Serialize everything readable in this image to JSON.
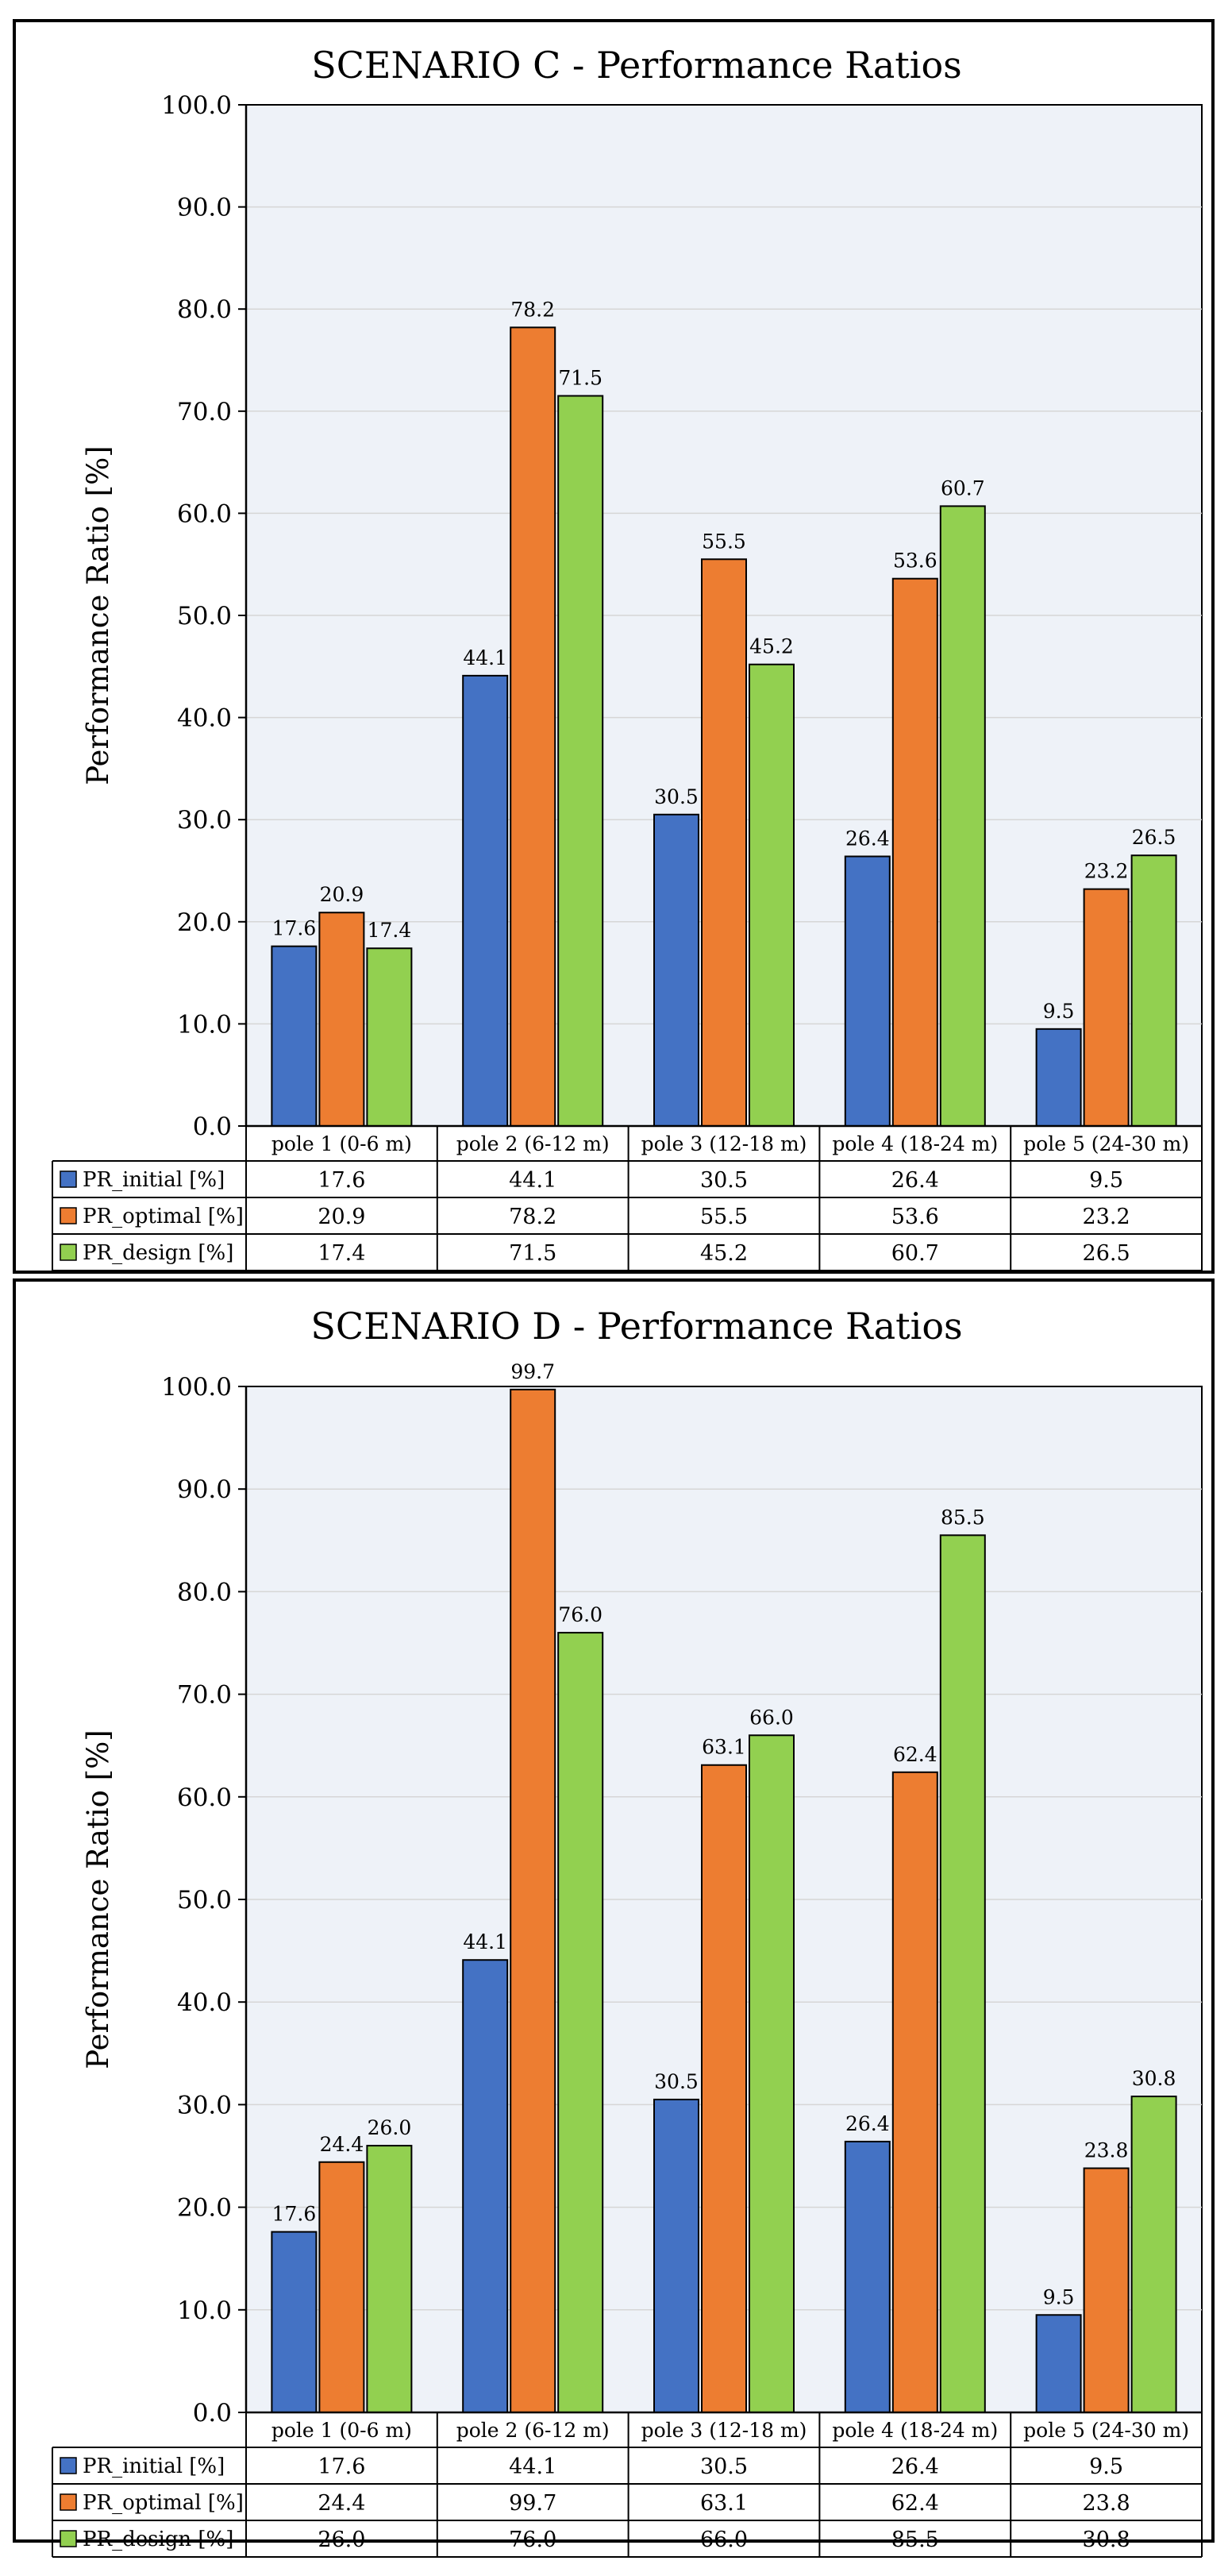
{
  "colors": {
    "PR_initial": "#4472C4",
    "PR_optimal": "#ED7D31",
    "PR_design": "#92D050",
    "plot_bg": "#EEF2F8",
    "gridline": "#D6D6D6"
  },
  "chart_data": [
    {
      "type": "bar",
      "title": "SCENARIO C - Performance Ratios",
      "xlabel": "",
      "ylabel": "Performance Ratio [%]",
      "ylim": [
        0,
        100
      ],
      "yticks": [
        "0.0",
        "10.0",
        "20.0",
        "30.0",
        "40.0",
        "50.0",
        "60.0",
        "70.0",
        "80.0",
        "90.0",
        "100.0"
      ],
      "grid": true,
      "legend": "data table below chart",
      "categories": [
        "pole 1 (0-6 m)",
        "pole 2 (6-12 m)",
        "pole 3 (12-18 m)",
        "pole 4 (18-24 m)",
        "pole 5 (24-30 m)"
      ],
      "series": [
        {
          "name": "PR_initial [%]",
          "key": "PR_initial",
          "values": [
            17.6,
            44.1,
            30.5,
            26.4,
            9.5
          ],
          "labels": [
            "17.6",
            "44.1",
            "30.5",
            "26.4",
            "9.5"
          ]
        },
        {
          "name": "PR_optimal [%]",
          "key": "PR_optimal",
          "values": [
            20.9,
            78.2,
            55.5,
            53.6,
            23.2
          ],
          "labels": [
            "20.9",
            "78.2",
            "55.5",
            "53.6",
            "23.2"
          ]
        },
        {
          "name": "PR_design [%]",
          "key": "PR_design",
          "values": [
            17.4,
            71.5,
            45.2,
            60.7,
            26.5
          ],
          "labels": [
            "17.4",
            "71.5",
            "45.2",
            "60.7",
            "26.5"
          ]
        }
      ]
    },
    {
      "type": "bar",
      "title": "SCENARIO D - Performance Ratios",
      "xlabel": "",
      "ylabel": "Performance Ratio [%]",
      "ylim": [
        0,
        100
      ],
      "yticks": [
        "0.0",
        "10.0",
        "20.0",
        "30.0",
        "40.0",
        "50.0",
        "60.0",
        "70.0",
        "80.0",
        "90.0",
        "100.0"
      ],
      "grid": true,
      "legend": "data table below chart",
      "categories": [
        "pole 1 (0-6 m)",
        "pole 2 (6-12 m)",
        "pole 3 (12-18 m)",
        "pole 4 (18-24 m)",
        "pole 5 (24-30 m)"
      ],
      "series": [
        {
          "name": "PR_initial [%]",
          "key": "PR_initial",
          "values": [
            17.6,
            44.1,
            30.5,
            26.4,
            9.5
          ],
          "labels": [
            "17.6",
            "44.1",
            "30.5",
            "26.4",
            "9.5"
          ]
        },
        {
          "name": "PR_optimal [%]",
          "key": "PR_optimal",
          "values": [
            24.4,
            99.7,
            63.1,
            62.4,
            23.8
          ],
          "labels": [
            "24.4",
            "99.7",
            "63.1",
            "62.4",
            "23.8"
          ]
        },
        {
          "name": "PR_design [%]",
          "key": "PR_design",
          "values": [
            26.0,
            76.0,
            66.0,
            85.5,
            30.8
          ],
          "labels": [
            "26.0",
            "76.0",
            "66.0",
            "85.5",
            "30.8"
          ]
        }
      ]
    }
  ]
}
